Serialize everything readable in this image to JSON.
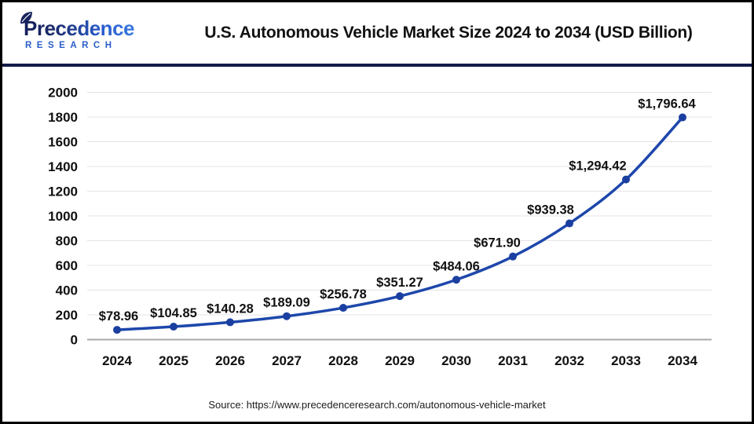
{
  "header": {
    "logo": {
      "name": "Precedence",
      "subtitle": "RESEARCH"
    },
    "title": "U.S. Autonomous Vehicle Market Size 2024 to 2034 (USD Billion)"
  },
  "chart_data": {
    "type": "line",
    "title": "U.S. Autonomous Vehicle Market Size 2024 to 2034 (USD Billion)",
    "categories": [
      "2024",
      "2025",
      "2026",
      "2027",
      "2028",
      "2029",
      "2030",
      "2031",
      "2032",
      "2033",
      "2034"
    ],
    "values": [
      78.96,
      104.85,
      140.28,
      189.09,
      256.78,
      351.27,
      484.06,
      671.9,
      939.38,
      1294.42,
      1796.64
    ],
    "point_labels": [
      "$78.96",
      "$104.85",
      "$140.28",
      "$189.09",
      "$256.78",
      "$351.27",
      "$484.06",
      "$671.90",
      "$939.38",
      "$1,294.42",
      "$1,796.64"
    ],
    "xlabel": "",
    "ylabel": "",
    "ylim": [
      0,
      2000
    ],
    "yticks": [
      0,
      200,
      400,
      600,
      800,
      1000,
      1200,
      1400,
      1600,
      1800,
      2000
    ],
    "grid": true,
    "legend_position": "none",
    "line_color": "#1d47ab",
    "marker_color": "#1a3fa0",
    "grid_color": "#e4e4e4",
    "axis_color": "#a9a9a9",
    "label_color": "#111111"
  },
  "source": {
    "text": "Source: https://www.precedenceresearch.com/autonomous-vehicle-market"
  },
  "colors": {
    "header_rule": "#131b4a",
    "frame_border": "#000000",
    "logo_dark": "#18235e",
    "logo_light": "#3f86e8",
    "research_blue": "#2a5ec9"
  }
}
